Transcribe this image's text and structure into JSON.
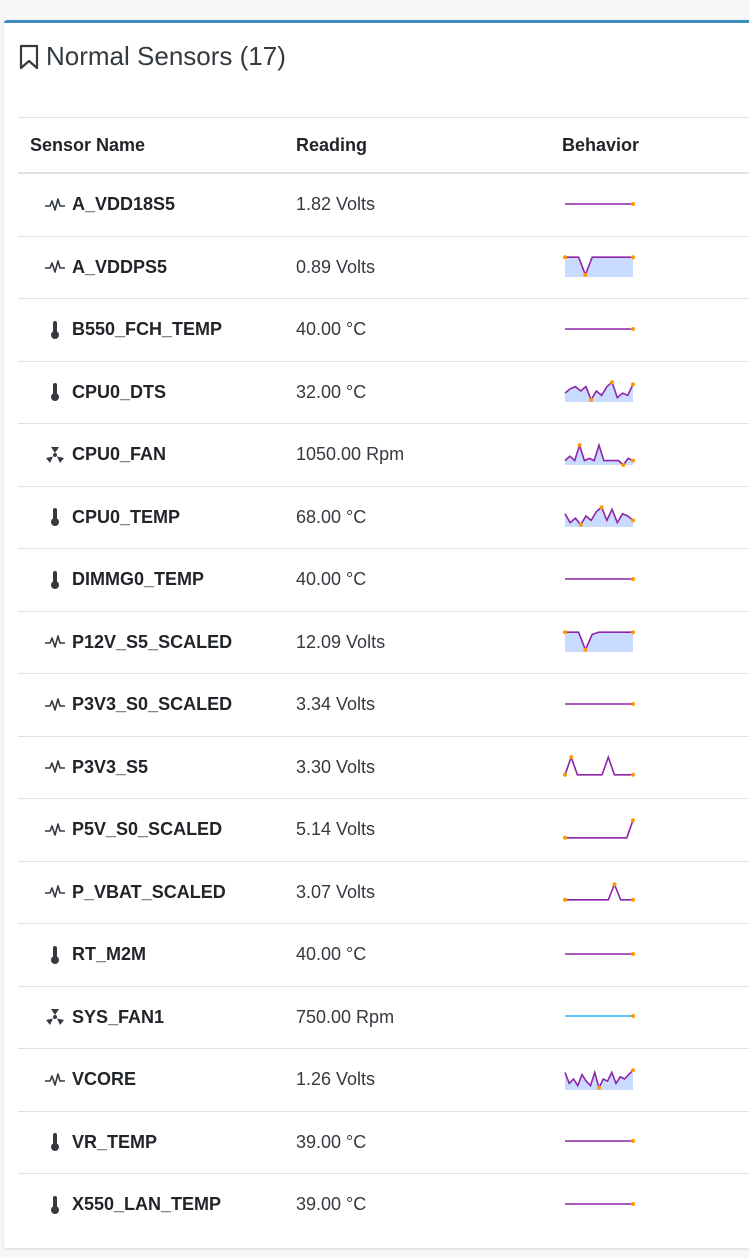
{
  "card": {
    "title": "Normal Sensors (17)"
  },
  "table": {
    "headers": {
      "name": "Sensor Name",
      "reading": "Reading",
      "behavior": "Behavior"
    }
  },
  "colors": {
    "line": "#8e24aa",
    "fill": "#c9dcff",
    "marker": "#ff9800",
    "alt_line": "#29b6f6",
    "accent": "#3c8dbc"
  },
  "sensors": [
    {
      "name": "A_VDD18S5",
      "reading": "1.82 Volts",
      "icon": "pulse-icon",
      "trend": [
        0.5,
        0.5,
        0.5,
        0.5,
        0.5,
        0.5
      ],
      "fill": false
    },
    {
      "name": "A_VDDPS5",
      "reading": "0.89 Volts",
      "icon": "pulse-icon",
      "trend": [
        0.9,
        0.9,
        0.9,
        0.1,
        0.9,
        0.9,
        0.9,
        0.9,
        0.9,
        0.9,
        0.9
      ],
      "fill": true
    },
    {
      "name": "B550_FCH_TEMP",
      "reading": "40.00 °C",
      "icon": "thermometer-icon",
      "trend": [
        0.5,
        0.5,
        0.5,
        0.5,
        0.5,
        0.5
      ],
      "fill": false
    },
    {
      "name": "CPU0_DTS",
      "reading": "32.00 °C",
      "icon": "thermometer-icon",
      "trend": [
        0.4,
        0.6,
        0.7,
        0.5,
        0.7,
        0.1,
        0.5,
        0.3,
        0.7,
        0.9,
        0.2,
        0.4,
        0.3,
        0.8
      ],
      "fill": true
    },
    {
      "name": "CPU0_FAN",
      "reading": "1050.00 Rpm",
      "icon": "fan-icon",
      "trend": [
        0.2,
        0.4,
        0.2,
        0.9,
        0.2,
        0.3,
        0.2,
        0.9,
        0.2,
        0.2,
        0.2,
        0.2,
        0.0,
        0.3,
        0.2
      ],
      "fill": true
    },
    {
      "name": "CPU0_TEMP",
      "reading": "68.00 °C",
      "icon": "thermometer-icon",
      "trend": [
        0.6,
        0.2,
        0.4,
        0.1,
        0.5,
        0.3,
        0.7,
        0.9,
        0.3,
        0.8,
        0.2,
        0.6,
        0.5,
        0.3
      ],
      "fill": true
    },
    {
      "name": "DIMMG0_TEMP",
      "reading": "40.00 °C",
      "icon": "thermometer-icon",
      "trend": [
        0.5,
        0.5,
        0.5,
        0.5,
        0.5,
        0.5
      ],
      "fill": false
    },
    {
      "name": "P12V_S5_SCALED",
      "reading": "12.09 Volts",
      "icon": "pulse-icon",
      "trend": [
        0.9,
        0.9,
        0.9,
        0.1,
        0.8,
        0.9,
        0.9,
        0.9,
        0.9,
        0.9,
        0.9
      ],
      "fill": true
    },
    {
      "name": "P3V3_S0_SCALED",
      "reading": "3.34 Volts",
      "icon": "pulse-icon",
      "trend": [
        0.5,
        0.5,
        0.5,
        0.5,
        0.5,
        0.5
      ],
      "fill": false
    },
    {
      "name": "P3V3_S5",
      "reading": "3.30 Volts",
      "icon": "pulse-icon",
      "trend": [
        0.1,
        0.9,
        0.1,
        0.1,
        0.1,
        0.1,
        0.1,
        0.9,
        0.1,
        0.1,
        0.1,
        0.1
      ],
      "fill": false
    },
    {
      "name": "P5V_S0_SCALED",
      "reading": "5.14 Volts",
      "icon": "pulse-icon",
      "trend": [
        0.1,
        0.1,
        0.1,
        0.1,
        0.1,
        0.1,
        0.1,
        0.1,
        0.1,
        0.1,
        0.1,
        0.9
      ],
      "fill": false
    },
    {
      "name": "P_VBAT_SCALED",
      "reading": "3.07 Volts",
      "icon": "pulse-icon",
      "trend": [
        0.1,
        0.1,
        0.1,
        0.1,
        0.1,
        0.1,
        0.1,
        0.1,
        0.8,
        0.1,
        0.1,
        0.1
      ],
      "fill": false
    },
    {
      "name": "RT_M2M",
      "reading": "40.00 °C",
      "icon": "thermometer-icon",
      "trend": [
        0.5,
        0.5,
        0.5,
        0.5,
        0.5,
        0.5
      ],
      "fill": false
    },
    {
      "name": "SYS_FAN1",
      "reading": "750.00 Rpm",
      "icon": "fan-icon",
      "trend": [
        0.5,
        0.5,
        0.5,
        0.5,
        0.5,
        0.5
      ],
      "fill": false,
      "alt": true
    },
    {
      "name": "VCORE",
      "reading": "1.26 Volts",
      "icon": "pulse-icon",
      "trend": [
        0.8,
        0.3,
        0.5,
        0.2,
        0.7,
        0.4,
        0.2,
        0.8,
        0.1,
        0.5,
        0.4,
        0.8,
        0.3,
        0.6,
        0.5,
        0.7,
        0.9
      ],
      "fill": true
    },
    {
      "name": "VR_TEMP",
      "reading": "39.00 °C",
      "icon": "thermometer-icon",
      "trend": [
        0.5,
        0.5,
        0.5,
        0.5,
        0.5,
        0.5
      ],
      "fill": false
    },
    {
      "name": "X550_LAN_TEMP",
      "reading": "39.00 °C",
      "icon": "thermometer-icon",
      "trend": [
        0.5,
        0.5,
        0.5,
        0.5,
        0.5,
        0.5
      ],
      "fill": false
    }
  ]
}
